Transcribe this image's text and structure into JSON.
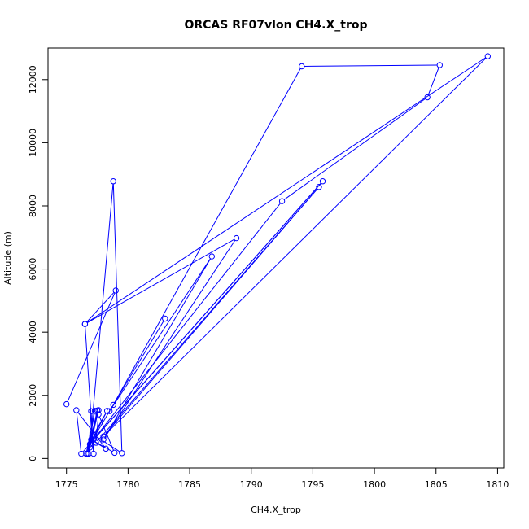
{
  "chart_data": {
    "type": "line",
    "title": "ORCAS RF07vlon CH4.X_trop",
    "xlabel": "CH4.X_trop",
    "ylabel": "Altitude (m)",
    "xlim": [
      1773.5,
      1810.5
    ],
    "ylim": [
      -300,
      13000
    ],
    "xticks": [
      1775,
      1780,
      1785,
      1790,
      1795,
      1800,
      1805,
      1810
    ],
    "yticks": [
      0,
      2000,
      4000,
      6000,
      8000,
      10000,
      12000
    ],
    "grid": false,
    "series_color": "#0000ff",
    "marker": "open-circle",
    "points": [
      {
        "x": 1775.0,
        "y": 1720
      },
      {
        "x": 1779.0,
        "y": 5320
      },
      {
        "x": 1776.5,
        "y": 4260
      },
      {
        "x": 1777.2,
        "y": 150
      },
      {
        "x": 1777.0,
        "y": 1500
      },
      {
        "x": 1776.8,
        "y": 150
      },
      {
        "x": 1777.5,
        "y": 1520
      },
      {
        "x": 1776.7,
        "y": 150
      },
      {
        "x": 1777.3,
        "y": 1510
      },
      {
        "x": 1776.6,
        "y": 150
      },
      {
        "x": 1777.6,
        "y": 1530
      },
      {
        "x": 1776.9,
        "y": 350
      },
      {
        "x": 1778.8,
        "y": 8780
      },
      {
        "x": 1779.5,
        "y": 170
      },
      {
        "x": 1777.2,
        "y": 750
      },
      {
        "x": 1778.3,
        "y": 1510
      },
      {
        "x": 1776.9,
        "y": 450
      },
      {
        "x": 1778.8,
        "y": 1700
      },
      {
        "x": 1794.1,
        "y": 12420
      },
      {
        "x": 1805.3,
        "y": 12460
      },
      {
        "x": 1804.3,
        "y": 11440
      },
      {
        "x": 1792.5,
        "y": 8150
      },
      {
        "x": 1777.2,
        "y": 600
      },
      {
        "x": 1795.8,
        "y": 8780
      },
      {
        "x": 1776.2,
        "y": 150
      },
      {
        "x": 1775.8,
        "y": 1530
      },
      {
        "x": 1778.2,
        "y": 310
      },
      {
        "x": 1777.0,
        "y": 600
      },
      {
        "x": 1778.9,
        "y": 180
      },
      {
        "x": 1777.6,
        "y": 1400
      },
      {
        "x": 1777.4,
        "y": 500
      },
      {
        "x": 1795.5,
        "y": 8600
      },
      {
        "x": 1778.0,
        "y": 700
      },
      {
        "x": 1809.2,
        "y": 12740
      },
      {
        "x": 1776.5,
        "y": 4260
      },
      {
        "x": 1788.8,
        "y": 6980
      },
      {
        "x": 1778.0,
        "y": 600
      },
      {
        "x": 1786.8,
        "y": 6400
      },
      {
        "x": 1778.5,
        "y": 1500
      },
      {
        "x": 1783.0,
        "y": 4430
      }
    ]
  }
}
